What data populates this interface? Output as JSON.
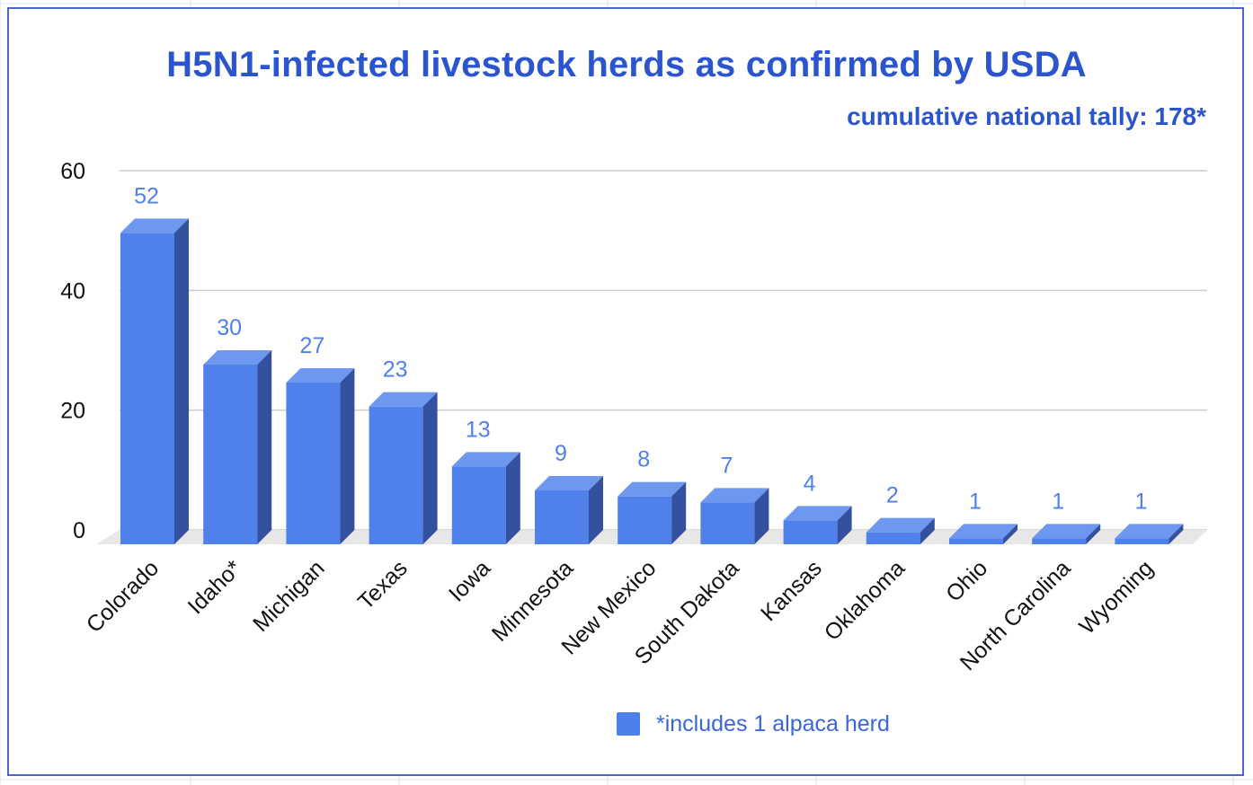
{
  "chart_data": {
    "type": "bar",
    "title": "H5N1-infected livestock herds as confirmed by USDA",
    "subtitle": "cumulative national tally: 178*",
    "categories": [
      "Colorado",
      "Idaho*",
      "Michigan",
      "Texas",
      "Iowa",
      "Minnesota",
      "New Mexico",
      "South Dakota",
      "Kansas",
      "Oklahoma",
      "Ohio",
      "North Carolina",
      "Wyoming"
    ],
    "values": [
      52,
      30,
      27,
      23,
      13,
      9,
      8,
      7,
      4,
      2,
      1,
      1,
      1
    ],
    "ylim": [
      0,
      60
    ],
    "yticks": [
      0,
      20,
      40,
      60
    ],
    "grid": true,
    "legend": {
      "label": "*includes 1 alpaca herd",
      "position": "bottom"
    },
    "style": "3d-bar",
    "colors": {
      "bar_front": "#5080ea",
      "bar_top": "#6e97f0",
      "bar_side": "#34519f",
      "title": "#2b55cf",
      "data_label": "#5080ea",
      "floor": "#e7e7e7",
      "grid": "#cccccc"
    }
  }
}
